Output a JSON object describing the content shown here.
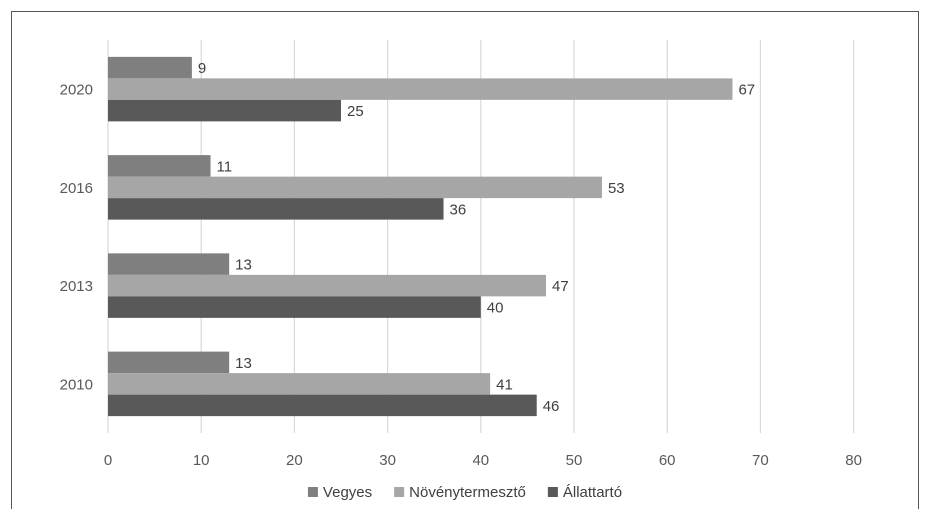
{
  "chart_data": {
    "type": "bar",
    "orientation": "horizontal",
    "categories": [
      "2010",
      "2013",
      "2016",
      "2020"
    ],
    "series": [
      {
        "name": "Vegyes",
        "values": [
          13,
          13,
          11,
          9
        ],
        "color": "#7f7f7f"
      },
      {
        "name": "Növénytermesztő",
        "values": [
          41,
          47,
          53,
          67
        ],
        "color": "#a6a6a6"
      },
      {
        "name": "Állattartó",
        "values": [
          46,
          40,
          36,
          25
        ],
        "color": "#595959"
      }
    ],
    "x_ticks": [
      "0",
      "10",
      "20",
      "30",
      "40",
      "50",
      "60",
      "70",
      "80"
    ],
    "xlim": [
      0,
      80
    ],
    "grid": true,
    "legend_position": "bottom",
    "data_labels": true,
    "title": "",
    "xlabel": "",
    "ylabel": ""
  }
}
